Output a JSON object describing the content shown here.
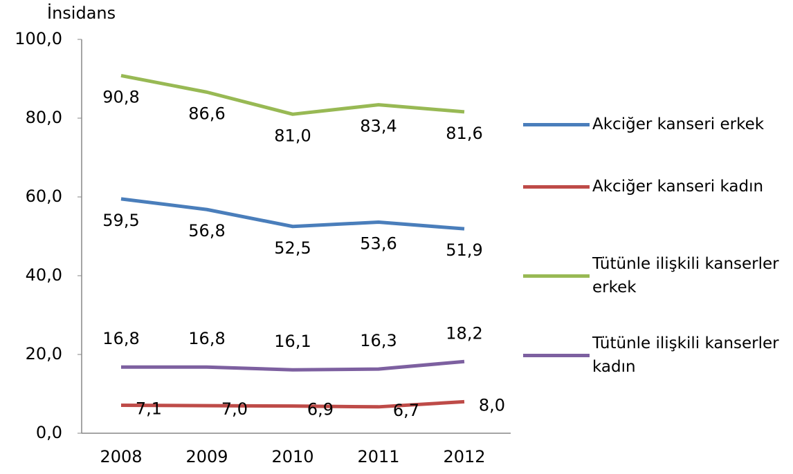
{
  "chart_data": {
    "type": "line",
    "y_label": "İnsidans",
    "categories": [
      "2008",
      "2009",
      "2010",
      "2011",
      "2012"
    ],
    "series": [
      {
        "name": "Akciğer kanseri erkek",
        "color": "#4a7ebb",
        "values": [
          59.5,
          56.8,
          52.5,
          53.6,
          51.9
        ],
        "value_labels": [
          "59,5",
          "56,8",
          "52,5",
          "53,6",
          "51,9"
        ]
      },
      {
        "name": "Akciğer kanseri kadın",
        "color": "#be4b48",
        "values": [
          7.1,
          7.0,
          6.9,
          6.7,
          8.0
        ],
        "value_labels": [
          "7,1",
          "7,0",
          "6,9",
          "6,7",
          "8,0"
        ]
      },
      {
        "name": "Tütünle ilişkili kanserler erkek",
        "color": "#98b954",
        "values": [
          90.8,
          86.6,
          81.0,
          83.4,
          81.6
        ],
        "value_labels": [
          "90,8",
          "86,6",
          "81,0",
          "83,4",
          "81,6"
        ]
      },
      {
        "name": "Tütünle ilişkili kanserler kadın",
        "color": "#7d60a0",
        "values": [
          16.8,
          16.8,
          16.1,
          16.3,
          18.2
        ],
        "value_labels": [
          "16,8",
          "16,8",
          "16,1",
          "16,3",
          "18,2"
        ]
      }
    ],
    "ylim": [
      0,
      100
    ],
    "yticks": [
      {
        "value": 0,
        "label": "0,0"
      },
      {
        "value": 20,
        "label": "20,0"
      },
      {
        "value": 40,
        "label": "40,0"
      },
      {
        "value": 60,
        "label": "60,0"
      },
      {
        "value": 80,
        "label": "80,0"
      },
      {
        "value": 100,
        "label": "100,0"
      }
    ],
    "legend": "right"
  }
}
